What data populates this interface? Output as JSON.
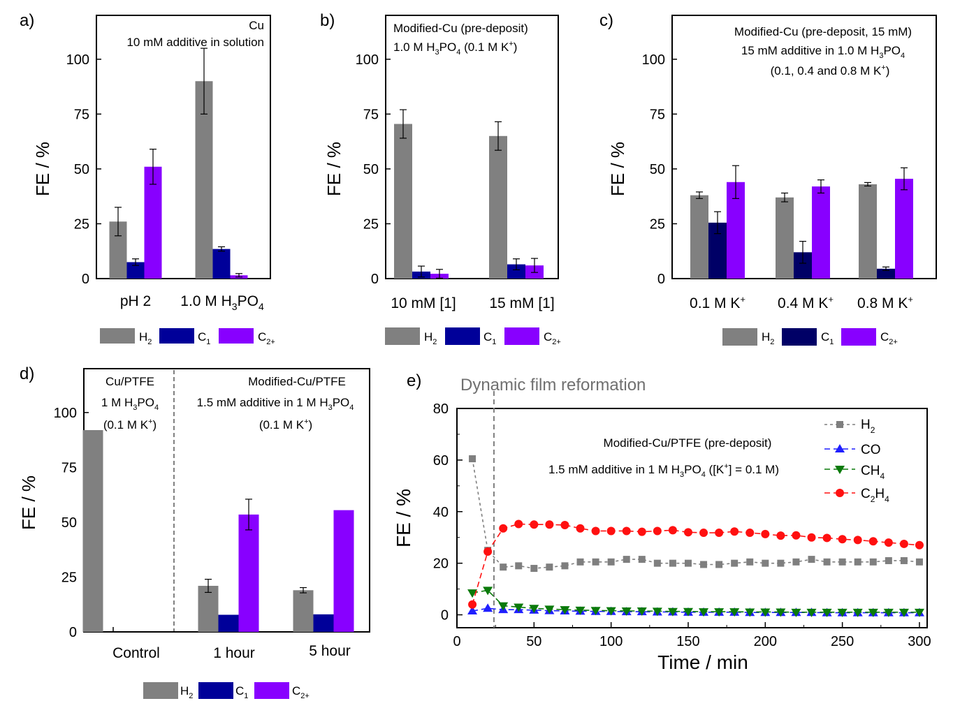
{
  "colors": {
    "H2": "#808080",
    "C1": "#000099",
    "C2": "#8800ff",
    "H2_line": "#7f7f7f",
    "CO": "#1f1fff",
    "CH4": "#0a7a0a",
    "C2H4": "#ff1010"
  },
  "chart_data": [
    {
      "panel": "a)",
      "type": "bar",
      "annotation": [
        "Cu",
        "10 mM additive in solution"
      ],
      "ylabel": "FE / %",
      "ylim": [
        0,
        120
      ],
      "yticks": [
        0,
        25,
        50,
        75,
        100
      ],
      "categories": [
        "pH 2",
        "1.0 M H3PO4"
      ],
      "series": [
        {
          "name": "H2",
          "values": [
            26,
            90
          ],
          "errors": [
            6.5,
            15
          ]
        },
        {
          "name": "C1",
          "values": [
            7.5,
            13.5
          ],
          "errors": [
            1.5,
            1.0
          ]
        },
        {
          "name": "C2+",
          "values": [
            51,
            1.5
          ],
          "errors": [
            8,
            0.8
          ]
        }
      ]
    },
    {
      "panel": "b)",
      "type": "bar",
      "annotation": [
        "Modified-Cu (pre-deposit)",
        "1.0 M H3PO4 (0.1 M K+)"
      ],
      "ylabel": "FE / %",
      "ylim": [
        0,
        120
      ],
      "yticks": [
        0,
        25,
        50,
        75,
        100
      ],
      "categories": [
        "10 mM [1]",
        "15 mM [1]"
      ],
      "series": [
        {
          "name": "H2",
          "values": [
            70.5,
            65
          ],
          "errors": [
            6.5,
            6.5
          ]
        },
        {
          "name": "C1",
          "values": [
            3.2,
            6.5
          ],
          "errors": [
            2.5,
            2.5
          ]
        },
        {
          "name": "C2+",
          "values": [
            2.2,
            6
          ],
          "errors": [
            2,
            3.2
          ]
        }
      ]
    },
    {
      "panel": "c)",
      "type": "bar",
      "annotation": [
        "Modified-Cu (pre-deposit, 15 mM)",
        "15 mM additive in 1.0 M H3PO4",
        "(0.1, 0.4 and 0.8 M K+)"
      ],
      "ylabel": "FE / %",
      "ylim": [
        0,
        120
      ],
      "yticks": [
        0,
        25,
        50,
        75,
        100
      ],
      "categories": [
        "0.1 M K+",
        "0.4 M K+",
        "0.8 M K+"
      ],
      "series": [
        {
          "name": "H2",
          "values": [
            38,
            37,
            43
          ],
          "errors": [
            1.5,
            2,
            0.8
          ]
        },
        {
          "name": "C1",
          "values": [
            25.5,
            12,
            4.5
          ],
          "errors": [
            5,
            5,
            0.8
          ]
        },
        {
          "name": "C2+",
          "values": [
            44,
            42,
            45.5
          ],
          "errors": [
            7.5,
            3,
            5
          ]
        }
      ]
    },
    {
      "panel": "d)",
      "type": "bar",
      "annotation_left": [
        "Cu/PTFE",
        "1 M H3PO4",
        "(0.1 M K+)"
      ],
      "annotation_right": [
        "Modified-Cu/PTFE",
        "1.5 mM additive in 1 M H3PO4",
        "(0.1 M K+)"
      ],
      "ylabel": "FE / %",
      "ylim": [
        0,
        120
      ],
      "yticks": [
        0,
        25,
        50,
        75,
        100
      ],
      "categories": [
        "Control",
        "1 hour",
        "5 hour"
      ],
      "series": [
        {
          "name": "H2",
          "values": [
            92,
            21,
            19
          ],
          "errors": [
            0,
            3,
            1.2
          ]
        },
        {
          "name": "C1",
          "values": [
            0,
            7.8,
            8
          ],
          "errors": [
            0,
            0,
            0
          ]
        },
        {
          "name": "C2+",
          "values": [
            0,
            53.5,
            55.5
          ],
          "errors": [
            0,
            7,
            0
          ]
        }
      ]
    },
    {
      "panel": "e)",
      "type": "line",
      "title": "Dynamic film reformation",
      "annotation": [
        "Modified-Cu/PTFE (pre-deposit)",
        "1.5 mM additive in 1 M H3PO4 ([K+] = 0.1 M)"
      ],
      "xlabel": "Time / min",
      "ylabel": "FE / %",
      "xlim": [
        0,
        305
      ],
      "ylim": [
        -5,
        80
      ],
      "xticks": [
        0,
        50,
        100,
        150,
        200,
        250,
        300
      ],
      "yticks": [
        0,
        20,
        40,
        60,
        80
      ],
      "vline_x": 24,
      "x": [
        10,
        20,
        30,
        40,
        50,
        60,
        70,
        80,
        90,
        100,
        110,
        120,
        130,
        140,
        150,
        160,
        170,
        180,
        190,
        200,
        210,
        220,
        230,
        240,
        250,
        260,
        270,
        280,
        290,
        300
      ],
      "series": [
        {
          "name": "H2",
          "marker": "square",
          "values": [
            60.5,
            25,
            18.5,
            19,
            18,
            18.5,
            19,
            20.5,
            20.5,
            20.5,
            21.5,
            21.5,
            20,
            20,
            20,
            19.5,
            19.5,
            20,
            20.5,
            20,
            20,
            20.5,
            21.5,
            20.5,
            20.5,
            20.5,
            20.5,
            21,
            21,
            20.5
          ]
        },
        {
          "name": "CO",
          "marker": "triangle-up",
          "values": [
            1.5,
            2.5,
            2,
            2,
            1.8,
            1.6,
            1.5,
            1.4,
            1.3,
            1.3,
            1.2,
            1.2,
            1.1,
            1.1,
            1.0,
            1.0,
            1.0,
            1.0,
            0.9,
            0.9,
            0.9,
            0.9,
            0.9,
            0.8,
            0.8,
            0.8,
            0.8,
            0.8,
            0.8,
            0.8
          ]
        },
        {
          "name": "CH4",
          "marker": "triangle-down",
          "values": [
            8.5,
            9.5,
            3.5,
            3,
            2.5,
            2.2,
            2,
            1.8,
            1.7,
            1.6,
            1.5,
            1.5,
            1.4,
            1.3,
            1.3,
            1.2,
            1.2,
            1.2,
            1.1,
            1.1,
            1.1,
            1.0,
            1.0,
            1.0,
            1.0,
            1.0,
            1.0,
            1.0,
            1.0,
            1.0
          ]
        },
        {
          "name": "C2H4",
          "marker": "circle",
          "values": [
            4,
            24.5,
            33.5,
            35.2,
            35,
            35,
            34.8,
            33.5,
            32.5,
            32.5,
            32.5,
            32.2,
            32.5,
            32.8,
            32,
            31.8,
            31.8,
            32.3,
            31.8,
            31.3,
            30.7,
            30.8,
            30,
            29.8,
            29.3,
            29,
            28.5,
            28,
            27.5,
            27
          ]
        }
      ]
    }
  ]
}
